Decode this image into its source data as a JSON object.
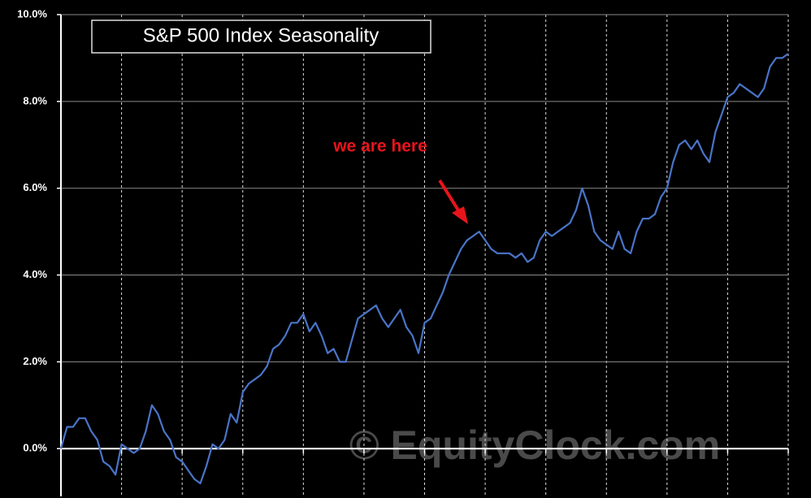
{
  "chart_data": {
    "type": "line",
    "title": "S&P 500 Index Seasonality",
    "annotation": "we are here",
    "watermark": "© EquityClock.com",
    "color": "#4a74c8",
    "ylim": [
      -1.1,
      10
    ],
    "yticks": [
      {
        "value": 0,
        "label": "0.0%"
      },
      {
        "value": 2,
        "label": "2.0%"
      },
      {
        "value": 4,
        "label": "4.0%"
      },
      {
        "value": 6,
        "label": "6.0%"
      },
      {
        "value": 8,
        "label": "8.0%"
      },
      {
        "value": 10,
        "label": "10.0%"
      }
    ],
    "grid": true,
    "values": [
      0.0,
      0.5,
      0.5,
      0.7,
      0.7,
      0.4,
      0.2,
      -0.3,
      -0.4,
      -0.6,
      0.1,
      0.0,
      -0.1,
      0.0,
      0.4,
      1.0,
      0.8,
      0.4,
      0.2,
      -0.2,
      -0.3,
      -0.5,
      -0.7,
      -0.8,
      -0.4,
      0.1,
      0.0,
      0.2,
      0.8,
      0.6,
      1.3,
      1.5,
      1.6,
      1.7,
      1.9,
      2.3,
      2.4,
      2.6,
      2.9,
      2.9,
      3.1,
      2.7,
      2.9,
      2.6,
      2.2,
      2.3,
      2.0,
      2.0,
      2.5,
      3.0,
      3.1,
      3.2,
      3.3,
      3.0,
      2.8,
      3.0,
      3.2,
      2.8,
      2.6,
      2.2,
      2.9,
      3.0,
      3.3,
      3.6,
      4.0,
      4.3,
      4.6,
      4.8,
      4.9,
      5.0,
      4.8,
      4.6,
      4.5,
      4.5,
      4.5,
      4.4,
      4.5,
      4.3,
      4.4,
      4.8,
      5.0,
      4.9,
      5.0,
      5.1,
      5.2,
      5.5,
      6.0,
      5.6,
      5.0,
      4.8,
      4.7,
      4.6,
      5.0,
      4.6,
      4.5,
      5.0,
      5.3,
      5.3,
      5.4,
      5.8,
      6.0,
      6.6,
      7.0,
      7.1,
      6.9,
      7.1,
      6.8,
      6.6,
      7.3,
      7.7,
      8.1,
      8.2,
      8.4,
      8.3,
      8.2,
      8.1,
      8.3,
      8.8,
      9.0,
      9.0,
      9.1
    ]
  }
}
